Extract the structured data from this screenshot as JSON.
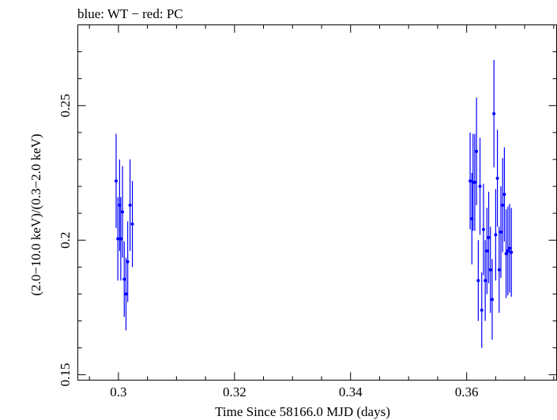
{
  "header": {
    "text": "blue: WT − red: PC"
  },
  "chart_data": {
    "type": "scatter",
    "xlabel": "Time Since 58166.0 MJD (days)",
    "ylabel": "(2.0−10.0 keV)/(0.3−2.0 keV)",
    "xlim": [
      0.293,
      0.3755
    ],
    "ylim": [
      0.148,
      0.28
    ],
    "x_ticks": [
      0.3,
      0.32,
      0.34,
      0.36
    ],
    "x_tick_labels": [
      "0.3",
      "0.32",
      "0.34",
      "0.36"
    ],
    "y_ticks": [
      0.15,
      0.2,
      0.25
    ],
    "y_tick_labels": [
      "0.15",
      "0.2",
      "0.25"
    ],
    "grid": false,
    "series": [
      {
        "color": "#0000ff",
        "points": [
          {
            "x": 0.2996,
            "y": 0.222,
            "err": 0.0175
          },
          {
            "x": 0.2999,
            "y": 0.2005,
            "err": 0.0155
          },
          {
            "x": 0.3002,
            "y": 0.213,
            "err": 0.017
          },
          {
            "x": 0.3004,
            "y": 0.2005,
            "err": 0.0155
          },
          {
            "x": 0.3007,
            "y": 0.2105,
            "err": 0.017
          },
          {
            "x": 0.301,
            "y": 0.1855,
            "err": 0.014
          },
          {
            "x": 0.3013,
            "y": 0.18,
            "err": 0.0135
          },
          {
            "x": 0.3016,
            "y": 0.192,
            "err": 0.015
          },
          {
            "x": 0.302,
            "y": 0.213,
            "err": 0.017
          },
          {
            "x": 0.3024,
            "y": 0.206,
            "err": 0.016
          },
          {
            "x": 0.3606,
            "y": 0.222,
            "err": 0.018
          },
          {
            "x": 0.3609,
            "y": 0.208,
            "err": 0.017
          },
          {
            "x": 0.3611,
            "y": 0.2215,
            "err": 0.018
          },
          {
            "x": 0.3614,
            "y": 0.2215,
            "err": 0.018
          },
          {
            "x": 0.3617,
            "y": 0.233,
            "err": 0.02
          },
          {
            "x": 0.362,
            "y": 0.185,
            "err": 0.015
          },
          {
            "x": 0.3623,
            "y": 0.22,
            "err": 0.018
          },
          {
            "x": 0.3626,
            "y": 0.174,
            "err": 0.014
          },
          {
            "x": 0.3629,
            "y": 0.204,
            "err": 0.017
          },
          {
            "x": 0.3632,
            "y": 0.185,
            "err": 0.015
          },
          {
            "x": 0.3635,
            "y": 0.196,
            "err": 0.016
          },
          {
            "x": 0.3638,
            "y": 0.201,
            "err": 0.017
          },
          {
            "x": 0.3641,
            "y": 0.189,
            "err": 0.016
          },
          {
            "x": 0.3644,
            "y": 0.178,
            "err": 0.015
          },
          {
            "x": 0.3647,
            "y": 0.247,
            "err": 0.02
          },
          {
            "x": 0.365,
            "y": 0.202,
            "err": 0.017
          },
          {
            "x": 0.3653,
            "y": 0.223,
            "err": 0.018
          },
          {
            "x": 0.3656,
            "y": 0.189,
            "err": 0.016
          },
          {
            "x": 0.3659,
            "y": 0.203,
            "err": 0.017
          },
          {
            "x": 0.3662,
            "y": 0.213,
            "err": 0.0175
          },
          {
            "x": 0.3665,
            "y": 0.217,
            "err": 0.0175
          },
          {
            "x": 0.3668,
            "y": 0.195,
            "err": 0.0165
          },
          {
            "x": 0.3671,
            "y": 0.196,
            "err": 0.0165
          },
          {
            "x": 0.3674,
            "y": 0.197,
            "err": 0.0165
          },
          {
            "x": 0.3677,
            "y": 0.1955,
            "err": 0.0165
          }
        ]
      }
    ]
  }
}
